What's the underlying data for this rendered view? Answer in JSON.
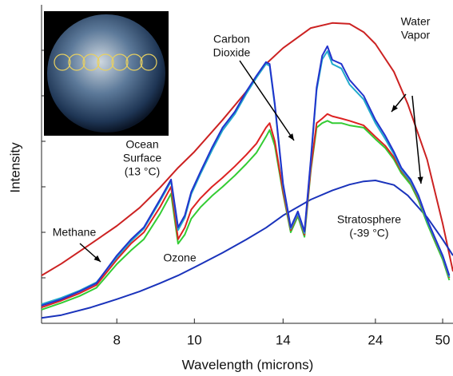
{
  "chart_data": {
    "type": "line",
    "xscale": "reciprocal",
    "xlabel": "Wavelength (microns)",
    "ylabel": "Intensity",
    "xlim": [
      6.7,
      60
    ],
    "xticks": [
      8,
      10,
      14,
      24,
      50
    ],
    "ylim": [
      0,
      7
    ],
    "yticks": [
      1,
      2,
      3,
      4,
      5,
      6
    ],
    "series": [
      {
        "color": "#cc2222",
        "x": [
          6.7,
          7,
          7.5,
          8,
          8.5,
          9,
          9.5,
          10,
          11,
          12,
          13,
          14,
          16,
          18,
          20,
          22,
          24,
          28,
          32,
          40,
          50,
          60
        ],
        "values": [
          1.05,
          1.31,
          1.75,
          2.14,
          2.54,
          2.98,
          3.42,
          3.77,
          4.47,
          5.09,
          5.7,
          6.05,
          6.49,
          6.6,
          6.58,
          6.4,
          6.14,
          5.53,
          4.82,
          3.6,
          2.19,
          1.14
        ]
      },
      {
        "color": "#1a33bb",
        "x": [
          6.7,
          7,
          7.5,
          8,
          8.5,
          9,
          9.5,
          10,
          11,
          12,
          13,
          14,
          16,
          18,
          20,
          22,
          24,
          28,
          32,
          40,
          50,
          60
        ],
        "values": [
          0.12,
          0.18,
          0.35,
          0.53,
          0.7,
          0.88,
          1.05,
          1.23,
          1.55,
          1.84,
          2.1,
          2.37,
          2.72,
          2.92,
          3.05,
          3.12,
          3.14,
          3.04,
          2.81,
          2.33,
          1.84,
          1.49
        ]
      },
      {
        "color": "#33cc33",
        "x": [
          6.7,
          7,
          7.3,
          7.6,
          8,
          8.3,
          8.6,
          9,
          9.3,
          9.5,
          9.7,
          9.9,
          10.2,
          10.6,
          11,
          11.5,
          12,
          12.5,
          13,
          13.2,
          13.5,
          14,
          14.5,
          15,
          15.5,
          16,
          16.5,
          17,
          17.5,
          18,
          19,
          20,
          22,
          24,
          26,
          28,
          30,
          33,
          36,
          40,
          45,
          50,
          56
        ],
        "values": [
          0.3,
          0.45,
          0.6,
          0.78,
          1.3,
          1.6,
          1.85,
          2.4,
          2.85,
          1.75,
          1.95,
          2.3,
          2.55,
          2.8,
          3.0,
          3.25,
          3.5,
          3.75,
          4.1,
          4.25,
          3.9,
          2.85,
          2.0,
          2.35,
          1.9,
          3.35,
          4.3,
          4.4,
          4.45,
          4.4,
          4.4,
          4.35,
          4.3,
          4.05,
          3.85,
          3.6,
          3.3,
          3.05,
          2.7,
          2.2,
          1.75,
          1.4,
          0.95
        ]
      },
      {
        "color": "#dd2222",
        "x": [
          6.7,
          7,
          7.3,
          7.6,
          8,
          8.3,
          8.6,
          9,
          9.3,
          9.5,
          9.7,
          9.9,
          10.2,
          10.6,
          11,
          11.5,
          12,
          12.5,
          13,
          13.2,
          13.5,
          14,
          14.5,
          15,
          15.5,
          16,
          16.5,
          17,
          17.5,
          18,
          19,
          20,
          22,
          24,
          26,
          28,
          30,
          33,
          36,
          40,
          45,
          50,
          56
        ],
        "values": [
          0.35,
          0.5,
          0.66,
          0.84,
          1.4,
          1.75,
          2.0,
          2.55,
          3.0,
          1.85,
          2.1,
          2.5,
          2.75,
          3.0,
          3.2,
          3.45,
          3.7,
          3.95,
          4.3,
          4.4,
          4.0,
          2.9,
          2.05,
          2.4,
          1.95,
          3.4,
          4.4,
          4.5,
          4.6,
          4.55,
          4.5,
          4.45,
          4.35,
          4.1,
          3.9,
          3.65,
          3.35,
          3.1,
          2.75,
          2.25,
          1.8,
          1.45,
          1.0
        ]
      },
      {
        "color": "#22aacc",
        "x": [
          6.7,
          7,
          7.3,
          7.6,
          8,
          8.3,
          8.6,
          9,
          9.3,
          9.5,
          9.7,
          9.9,
          10.2,
          10.6,
          11,
          11.5,
          12,
          12.5,
          13,
          13.2,
          13.5,
          14,
          14.5,
          15,
          15.5,
          16,
          16.5,
          17,
          17.5,
          18,
          19,
          20,
          22,
          24,
          26,
          28,
          30,
          33,
          36,
          40,
          45,
          50,
          56
        ],
        "values": [
          0.42,
          0.56,
          0.72,
          0.9,
          1.45,
          1.8,
          2.08,
          2.68,
          3.12,
          2.05,
          2.32,
          2.84,
          3.28,
          3.8,
          4.24,
          4.6,
          5.04,
          5.4,
          5.7,
          5.66,
          4.78,
          3.02,
          2.08,
          2.42,
          1.98,
          3.55,
          5.12,
          5.8,
          5.98,
          5.7,
          5.6,
          5.25,
          4.92,
          4.4,
          4.05,
          3.72,
          3.38,
          3.12,
          2.78,
          2.25,
          1.82,
          1.46,
          1.02
        ]
      },
      {
        "color": "#2233cc",
        "x": [
          6.7,
          7,
          7.3,
          7.6,
          8,
          8.3,
          8.6,
          9,
          9.3,
          9.5,
          9.7,
          9.9,
          10.2,
          10.6,
          11,
          11.5,
          12,
          12.5,
          13,
          13.2,
          13.5,
          14,
          14.5,
          15,
          15.5,
          16,
          16.5,
          17,
          17.5,
          18,
          19,
          20,
          22,
          24,
          26,
          28,
          30,
          33,
          36,
          40,
          45,
          50,
          56
        ],
        "values": [
          0.39,
          0.53,
          0.7,
          0.88,
          1.49,
          1.84,
          2.11,
          2.72,
          3.16,
          2.11,
          2.37,
          2.89,
          3.33,
          3.86,
          4.3,
          4.65,
          5.09,
          5.44,
          5.74,
          5.7,
          4.82,
          3.07,
          2.11,
          2.46,
          2.02,
          3.6,
          5.18,
          5.88,
          6.09,
          5.79,
          5.7,
          5.35,
          5.0,
          4.47,
          4.12,
          3.77,
          3.42,
          3.16,
          2.81,
          2.28,
          1.84,
          1.49,
          1.05
        ]
      }
    ],
    "annotations": [
      {
        "lines": [
          "Carbon",
          "Dioxide"
        ]
      },
      {
        "lines": [
          "Water",
          "Vapor"
        ]
      },
      {
        "lines": [
          "Ocean",
          "Surface",
          "(13 °C)"
        ]
      },
      {
        "lines": [
          "Methane"
        ]
      },
      {
        "lines": [
          "Ozone"
        ]
      },
      {
        "lines": [
          "Stratosphere",
          "(-39 °C)"
        ]
      }
    ]
  }
}
